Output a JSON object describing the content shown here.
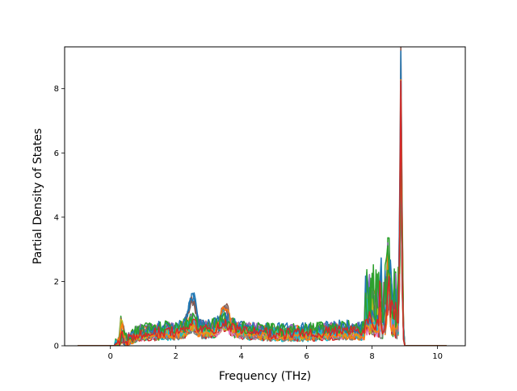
{
  "chart_data": {
    "type": "line",
    "title": "",
    "xlabel": "Frequency (THz)",
    "ylabel": "Partial Density of States",
    "xlim": [
      -1.4,
      10.85
    ],
    "ylim": [
      0,
      9.3
    ],
    "xticks": [
      0,
      2,
      4,
      6,
      8,
      10
    ],
    "xtick_labels": [
      "0",
      "2",
      "4",
      "6",
      "8",
      "10"
    ],
    "yticks": [
      0,
      2,
      4,
      6,
      8
    ],
    "ytick_labels": [
      "0",
      "2",
      "4",
      "6",
      "8"
    ],
    "grid": false,
    "legend": "none",
    "series_count": 24,
    "palette": [
      "#1f77b4",
      "#ff7f0e",
      "#2ca02c",
      "#d62728",
      "#9467bd",
      "#8c564b",
      "#e377c2",
      "#7f7f7f",
      "#bcbd22",
      "#17becf"
    ],
    "x_range": [
      -1.0,
      10.3
    ],
    "features": [
      {
        "x": 0.35,
        "y": 0.8,
        "description": "low-frequency spike"
      },
      {
        "x": 2.5,
        "y": 1.4,
        "description": "broad band peak"
      },
      {
        "x": 3.5,
        "y": 1.35,
        "description": "broad band peak"
      },
      {
        "x": 8.5,
        "y": 3.0,
        "description": "high-frequency peak"
      },
      {
        "x": 8.88,
        "y": 8.9,
        "description": "sharp maximum"
      }
    ]
  }
}
